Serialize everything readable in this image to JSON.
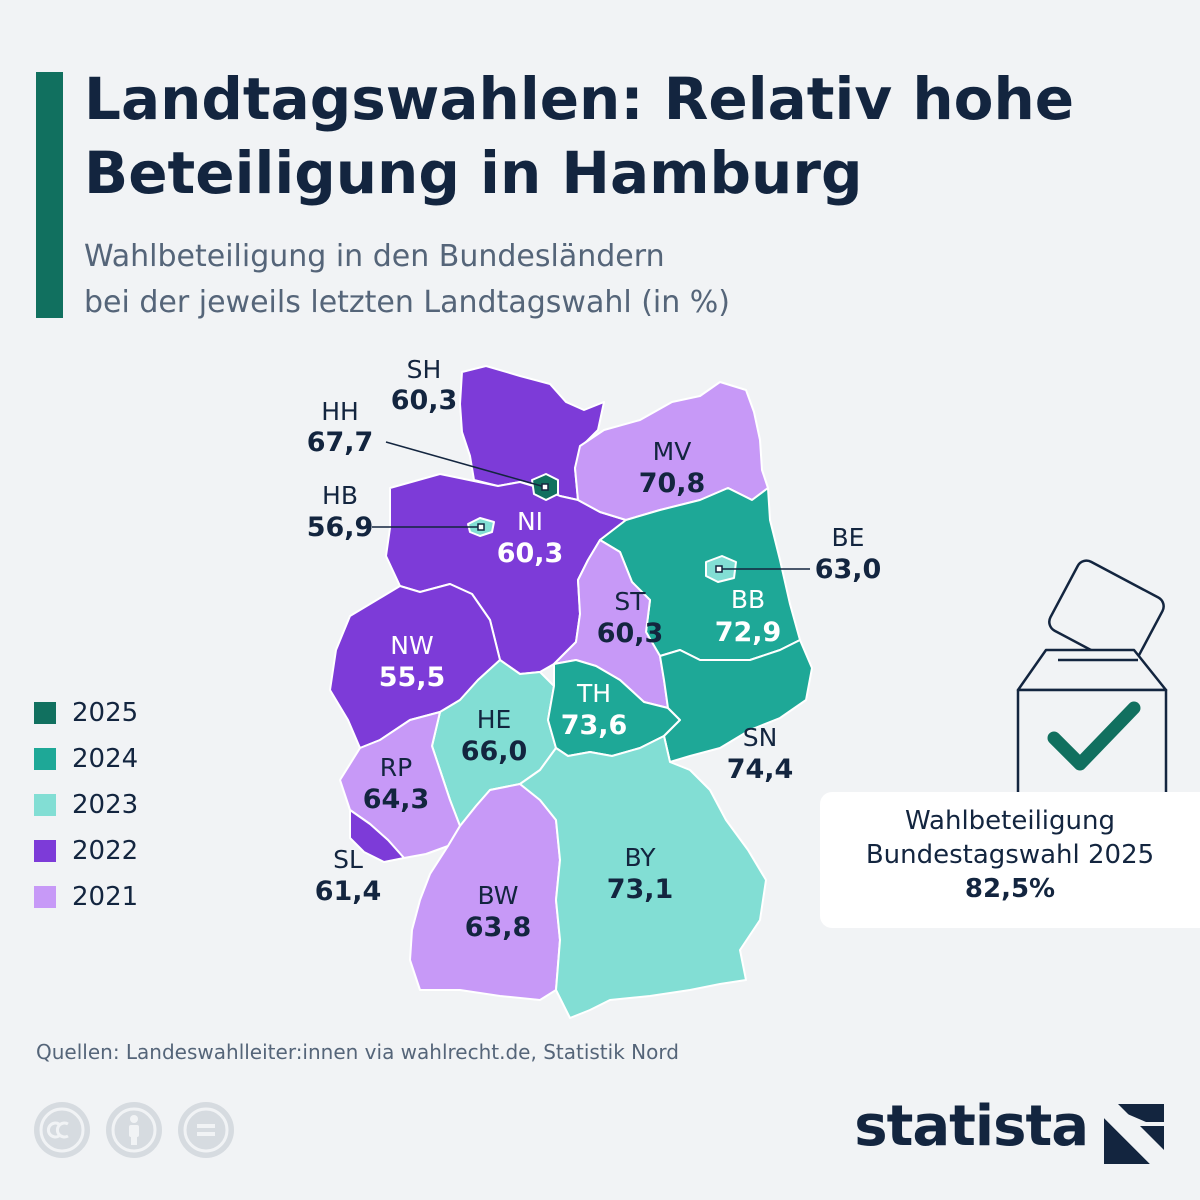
{
  "header": {
    "title": "Landtagswahlen: Relativ hohe Beteiligung in Hamburg",
    "subtitle_line1": "Wahlbeteiligung in den Bundesländern",
    "subtitle_line2": "bei der jeweils letzten Landtagswahl (in %)"
  },
  "colors": {
    "2025": "#11705f",
    "2024": "#1ea897",
    "2023": "#82ded4",
    "2022": "#7d3bd8",
    "2021": "#c799f7",
    "accent": "#11705f",
    "text": "#13253f",
    "muted": "#556579"
  },
  "legend": [
    {
      "year": "2025"
    },
    {
      "year": "2024"
    },
    {
      "year": "2023"
    },
    {
      "year": "2022"
    },
    {
      "year": "2021"
    }
  ],
  "map_data": {
    "states": [
      {
        "id": "SH",
        "code": "SH",
        "turnout": "60,3",
        "year": "2022"
      },
      {
        "id": "HH",
        "code": "HH",
        "turnout": "67,7",
        "year": "2025"
      },
      {
        "id": "HB",
        "code": "HB",
        "turnout": "56,9",
        "year": "2023"
      },
      {
        "id": "NI",
        "code": "NI",
        "turnout": "60,3",
        "year": "2022"
      },
      {
        "id": "MV",
        "code": "MV",
        "turnout": "70,8",
        "year": "2021"
      },
      {
        "id": "BE",
        "code": "BE",
        "turnout": "63,0",
        "year": "2023"
      },
      {
        "id": "BB",
        "code": "BB",
        "turnout": "72,9",
        "year": "2024"
      },
      {
        "id": "ST",
        "code": "ST",
        "turnout": "60,3",
        "year": "2021"
      },
      {
        "id": "NW",
        "code": "NW",
        "turnout": "55,5",
        "year": "2022"
      },
      {
        "id": "TH",
        "code": "TH",
        "turnout": "73,6",
        "year": "2024"
      },
      {
        "id": "SN",
        "code": "SN",
        "turnout": "74,4",
        "year": "2024"
      },
      {
        "id": "HE",
        "code": "HE",
        "turnout": "66,0",
        "year": "2023"
      },
      {
        "id": "RP",
        "code": "RP",
        "turnout": "64,3",
        "year": "2021"
      },
      {
        "id": "SL",
        "code": "SL",
        "turnout": "61,4",
        "year": "2022"
      },
      {
        "id": "BW",
        "code": "BW",
        "turnout": "63,8",
        "year": "2021"
      },
      {
        "id": "BY",
        "code": "BY",
        "turnout": "73,1",
        "year": "2023"
      }
    ]
  },
  "info_box": {
    "line1": "Wahlbeteiligung",
    "line2": "Bundestagswahl 2025",
    "value": "82,5%",
    "icon": "ballot-box-check-icon"
  },
  "footer": {
    "source": "Quellen: Landeswahlleiter:innen via wahlrecht.de, Statistik Nord",
    "license_icons": [
      "cc-icon",
      "attribution-icon",
      "no-derivatives-icon"
    ],
    "brand": "statista"
  }
}
